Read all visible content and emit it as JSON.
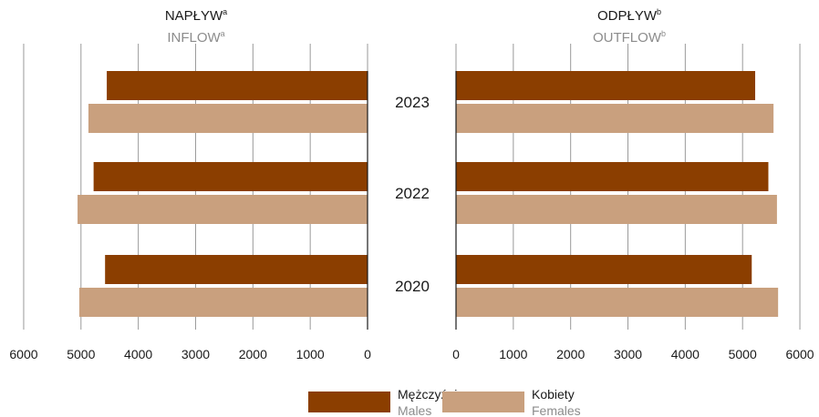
{
  "chart_data": {
    "type": "bar",
    "orientation": "horizontal",
    "categories": [
      "2023",
      "2022",
      "2020"
    ],
    "panels": [
      {
        "id": "inflow",
        "title": "NAPŁYW",
        "title_sup": "a",
        "subtitle": "INFLOW",
        "subtitle_sup": "a",
        "direction": "leftward",
        "xlim": [
          0,
          6000
        ],
        "ticks": [
          "6000",
          "5000",
          "4000",
          "3000",
          "2000",
          "1000",
          "0"
        ],
        "series": [
          {
            "name": "Mężczyźni",
            "values": [
              4550,
              4780,
              4580
            ]
          },
          {
            "name": "Kobiety",
            "values": [
              4870,
              5060,
              5030
            ]
          }
        ]
      },
      {
        "id": "outflow",
        "title": "ODPŁYW",
        "title_sup": "b",
        "subtitle": "OUTFLOW",
        "subtitle_sup": "b",
        "direction": "rightward",
        "xlim": [
          0,
          6000
        ],
        "ticks": [
          "0",
          "1000",
          "2000",
          "3000",
          "4000",
          "5000",
          "6000"
        ],
        "series": [
          {
            "name": "Mężczyźni",
            "values": [
              5220,
              5450,
              5160
            ]
          },
          {
            "name": "Kobiety",
            "values": [
              5540,
              5600,
              5620
            ]
          }
        ]
      }
    ],
    "legend": [
      {
        "label": "Mężczyźni",
        "sublabel": "Males",
        "color": "#8b3e00"
      },
      {
        "label": "Kobiety",
        "sublabel": "Females",
        "color": "#c9a07e"
      }
    ],
    "legend_position": "bottom-center",
    "grid": true
  }
}
